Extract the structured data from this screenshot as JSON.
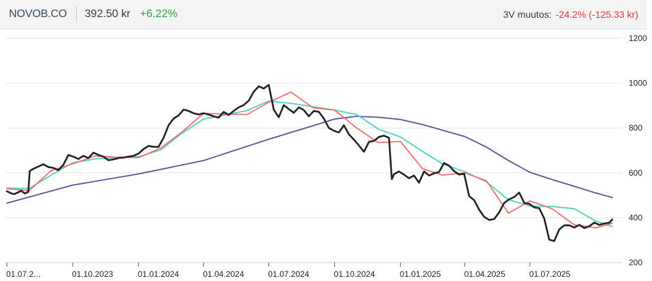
{
  "header": {
    "ticker": "NOVOB.CO",
    "price": "392.50 kr",
    "change": "+6.22%",
    "change_3y_label": "3V muutos:",
    "change_3y_value": "-24.2% (-125.33 kr)"
  },
  "colors": {
    "price": "#222222",
    "ma_short": "#ee6e6e",
    "ma_mid": "#4fd0bd",
    "ma_long": "#5a4f99",
    "positive": "#2e9c40",
    "negative": "#d9363e"
  },
  "chart_data": {
    "type": "line",
    "title": "",
    "xlabel": "",
    "ylabel": "",
    "ylim": [
      200,
      1200
    ],
    "y_ticks": [
      200,
      400,
      600,
      800,
      1000,
      1200
    ],
    "x_ticks": [
      {
        "date": "2023-07-01",
        "label": "01.07.2..."
      },
      {
        "date": "2023-10-01",
        "label": "01.10.2023"
      },
      {
        "date": "2024-01-01",
        "label": "01.01.2024"
      },
      {
        "date": "2024-04-01",
        "label": "01.04.2024"
      },
      {
        "date": "2024-07-01",
        "label": "01.07.2024"
      },
      {
        "date": "2024-10-01",
        "label": "01.10.2024"
      },
      {
        "date": "2025-01-01",
        "label": "01.01.2025"
      },
      {
        "date": "2025-04-01",
        "label": "01.04.2025"
      },
      {
        "date": "2025-07-01",
        "label": "01.07.2025"
      }
    ],
    "x_range": [
      "2023-07-01",
      "2025-10-25"
    ],
    "grid": "horizontal",
    "series": [
      {
        "key": "price",
        "x": [
          "2023-07-01",
          "2023-07-06",
          "2023-07-11",
          "2023-07-16",
          "2023-07-21",
          "2023-07-26",
          "2023-07-31",
          "2023-08-02",
          "2023-08-07",
          "2023-08-14",
          "2023-08-21",
          "2023-08-28",
          "2023-09-04",
          "2023-09-11",
          "2023-09-18",
          "2023-09-25",
          "2023-10-02",
          "2023-10-09",
          "2023-10-16",
          "2023-10-23",
          "2023-10-30",
          "2023-11-06",
          "2023-11-13",
          "2023-11-20",
          "2023-11-27",
          "2023-12-04",
          "2023-12-11",
          "2023-12-18",
          "2023-12-25",
          "2024-01-01",
          "2024-01-08",
          "2024-01-15",
          "2024-01-22",
          "2024-01-29",
          "2024-02-05",
          "2024-02-12",
          "2024-02-19",
          "2024-02-26",
          "2024-03-04",
          "2024-03-11",
          "2024-03-18",
          "2024-03-25",
          "2024-04-01",
          "2024-04-08",
          "2024-04-15",
          "2024-04-22",
          "2024-04-29",
          "2024-05-06",
          "2024-05-13",
          "2024-05-20",
          "2024-05-27",
          "2024-06-03",
          "2024-06-10",
          "2024-06-17",
          "2024-06-24",
          "2024-07-01",
          "2024-07-08",
          "2024-07-15",
          "2024-07-22",
          "2024-07-29",
          "2024-08-05",
          "2024-08-12",
          "2024-08-19",
          "2024-08-26",
          "2024-09-02",
          "2024-09-09",
          "2024-09-16",
          "2024-09-23",
          "2024-09-30",
          "2024-10-07",
          "2024-10-14",
          "2024-10-21",
          "2024-10-28",
          "2024-11-04",
          "2024-11-11",
          "2024-11-18",
          "2024-11-25",
          "2024-12-02",
          "2024-12-09",
          "2024-12-16",
          "2024-12-20",
          "2024-12-23",
          "2024-12-30",
          "2025-01-06",
          "2025-01-13",
          "2025-01-20",
          "2025-01-27",
          "2025-02-03",
          "2025-02-10",
          "2025-02-17",
          "2025-02-24",
          "2025-03-03",
          "2025-03-10",
          "2025-03-17",
          "2025-03-24",
          "2025-03-31",
          "2025-04-07",
          "2025-04-14",
          "2025-04-21",
          "2025-04-28",
          "2025-05-05",
          "2025-05-12",
          "2025-05-19",
          "2025-05-26",
          "2025-06-02",
          "2025-06-09",
          "2025-06-16",
          "2025-06-23",
          "2025-06-30",
          "2025-07-07",
          "2025-07-14",
          "2025-07-21",
          "2025-07-28",
          "2025-08-04",
          "2025-08-11",
          "2025-08-18",
          "2025-08-25",
          "2025-09-01",
          "2025-09-08",
          "2025-09-15",
          "2025-09-22",
          "2025-09-29",
          "2025-10-06",
          "2025-10-13",
          "2025-10-20",
          "2025-10-24"
        ],
        "values": [
          518,
          510,
          505,
          512,
          520,
          508,
          515,
          608,
          618,
          628,
          638,
          626,
          622,
          612,
          636,
          680,
          672,
          662,
          676,
          666,
          690,
          680,
          672,
          656,
          660,
          666,
          668,
          672,
          676,
          686,
          706,
          720,
          716,
          716,
          756,
          812,
          842,
          856,
          882,
          876,
          866,
          860,
          866,
          860,
          852,
          846,
          872,
          858,
          876,
          892,
          902,
          922,
          962,
          986,
          976,
          992,
          882,
          848,
          902,
          884,
          868,
          892,
          880,
          852,
          876,
          872,
          842,
          800,
          788,
          780,
          812,
          772,
          748,
          722,
          694,
          738,
          742,
          760,
          766,
          756,
          572,
          594,
          606,
          592,
          576,
          588,
          556,
          606,
          588,
          598,
          604,
          644,
          632,
          608,
          592,
          596,
          496,
          478,
          436,
          404,
          390,
          394,
          424,
          466,
          482,
          492,
          512,
          466,
          462,
          446,
          442,
          396,
          302,
          296,
          348,
          366,
          366,
          356,
          368,
          354,
          362,
          378,
          368,
          374,
          378,
          392
        ],
        "name": ""
      },
      {
        "key": "ma_short",
        "x": [
          "2023-07-01",
          "2023-08-01",
          "2023-09-01",
          "2023-10-01",
          "2023-11-01",
          "2023-12-01",
          "2024-01-01",
          "2024-02-01",
          "2024-03-01",
          "2024-04-01",
          "2024-05-01",
          "2024-06-01",
          "2024-07-01",
          "2024-08-01",
          "2024-09-01",
          "2024-10-01",
          "2024-11-01",
          "2024-12-01",
          "2025-01-01",
          "2025-02-01",
          "2025-03-01",
          "2025-04-01",
          "2025-05-01",
          "2025-06-01",
          "2025-07-01",
          "2025-08-01",
          "2025-09-01",
          "2025-10-01",
          "2025-10-24"
        ],
        "values": [
          530,
          520,
          610,
          640,
          675,
          670,
          668,
          710,
          780,
          865,
          862,
          860,
          915,
          960,
          890,
          880,
          800,
          735,
          740,
          618,
          590,
          600,
          565,
          420,
          475,
          440,
          368,
          355,
          375
        ],
        "name": ""
      },
      {
        "key": "ma_mid",
        "x": [
          "2023-07-01",
          "2023-08-01",
          "2023-09-01",
          "2023-10-01",
          "2023-11-01",
          "2023-12-01",
          "2024-01-01",
          "2024-02-01",
          "2024-03-01",
          "2024-04-01",
          "2024-05-01",
          "2024-06-01",
          "2024-07-01",
          "2024-08-01",
          "2024-09-01",
          "2024-10-01",
          "2024-11-01",
          "2024-12-01",
          "2025-01-01",
          "2025-02-01",
          "2025-03-01",
          "2025-04-01",
          "2025-05-01",
          "2025-06-01",
          "2025-07-01",
          "2025-08-01",
          "2025-09-01",
          "2025-10-01",
          "2025-10-24"
        ],
        "values": [
          532,
          530,
          590,
          645,
          662,
          668,
          672,
          702,
          775,
          840,
          858,
          878,
          920,
          910,
          895,
          880,
          860,
          795,
          760,
          695,
          640,
          605,
          560,
          480,
          452,
          450,
          440,
          385,
          360
        ],
        "name": ""
      },
      {
        "key": "ma_long",
        "x": [
          "2023-07-01",
          "2023-10-01",
          "2024-01-01",
          "2024-04-01",
          "2024-07-01",
          "2024-09-01",
          "2024-10-01",
          "2024-11-01",
          "2024-12-01",
          "2025-01-01",
          "2025-02-01",
          "2025-03-01",
          "2025-04-01",
          "2025-05-01",
          "2025-06-01",
          "2025-07-01",
          "2025-08-01",
          "2025-09-01",
          "2025-10-01",
          "2025-10-24"
        ],
        "values": [
          465,
          545,
          595,
          655,
          750,
          810,
          840,
          852,
          848,
          838,
          815,
          790,
          762,
          715,
          655,
          602,
          570,
          540,
          510,
          490
        ],
        "name": ""
      }
    ]
  }
}
